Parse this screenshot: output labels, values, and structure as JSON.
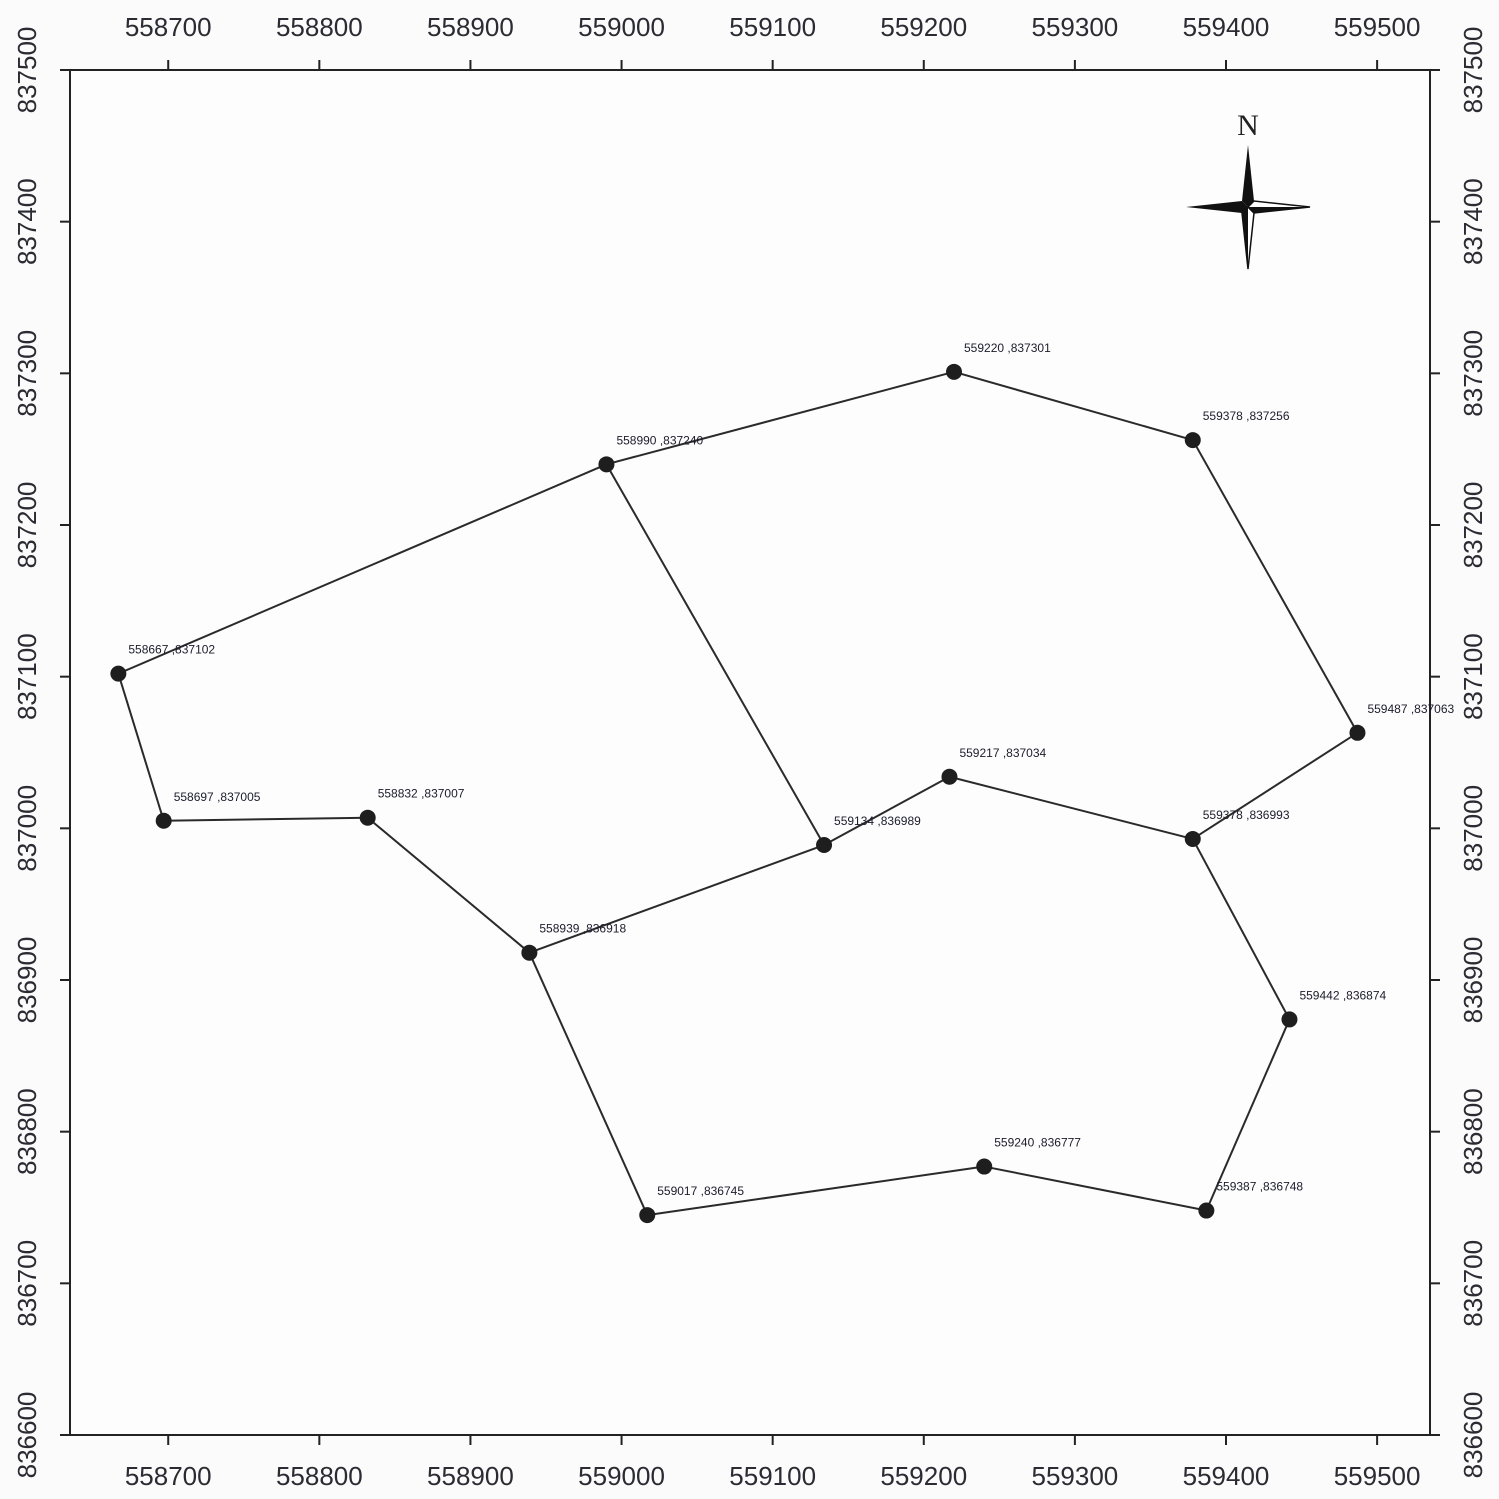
{
  "chart_data": {
    "type": "scatter",
    "x_ticks": [
      558700,
      558800,
      558900,
      559000,
      559100,
      559200,
      559300,
      559400,
      559500
    ],
    "y_ticks": [
      836600,
      836700,
      836800,
      836900,
      837000,
      837100,
      837200,
      837300,
      837400,
      837500
    ],
    "north_label": "N",
    "points": [
      {
        "id": "p1",
        "x": 558667,
        "y": 837102,
        "label": "558667 ,837102"
      },
      {
        "id": "p2",
        "x": 558697,
        "y": 837005,
        "label": "558697 ,837005"
      },
      {
        "id": "p3",
        "x": 558832,
        "y": 837007,
        "label": "558832 ,837007"
      },
      {
        "id": "p4",
        "x": 558939,
        "y": 836918,
        "label": "558939 ,836918"
      },
      {
        "id": "p5",
        "x": 558990,
        "y": 837240,
        "label": "558990 ,837240"
      },
      {
        "id": "p6",
        "x": 559134,
        "y": 836989,
        "label": "559134 ,836989"
      },
      {
        "id": "p7",
        "x": 559217,
        "y": 837034,
        "label": "559217 ,837034"
      },
      {
        "id": "p8",
        "x": 559220,
        "y": 837301,
        "label": "559220 ,837301"
      },
      {
        "id": "p9",
        "x": 559378,
        "y": 837256,
        "label": "559378 ,837256"
      },
      {
        "id": "p10",
        "x": 559378,
        "y": 836993,
        "label": "559378 ,836993"
      },
      {
        "id": "p11",
        "x": 559487,
        "y": 837063,
        "label": "559487 ,837063"
      },
      {
        "id": "p12",
        "x": 559442,
        "y": 836874,
        "label": "559442 ,836874"
      },
      {
        "id": "p13",
        "x": 559017,
        "y": 836745,
        "label": "559017 ,836745"
      },
      {
        "id": "p14",
        "x": 559240,
        "y": 836777,
        "label": "559240 ,836777"
      },
      {
        "id": "p15",
        "x": 559387,
        "y": 836748,
        "label": "559387 ,836748"
      }
    ],
    "lines": [
      [
        "p1",
        "p2"
      ],
      [
        "p2",
        "p3"
      ],
      [
        "p3",
        "p4"
      ],
      [
        "p4",
        "p6"
      ],
      [
        "p6",
        "p7"
      ],
      [
        "p7",
        "p10"
      ],
      [
        "p10",
        "p11"
      ],
      [
        "p1",
        "p5"
      ],
      [
        "p5",
        "p8"
      ],
      [
        "p8",
        "p9"
      ],
      [
        "p9",
        "p11"
      ],
      [
        "p5",
        "p6"
      ],
      [
        "p10",
        "p12"
      ],
      [
        "p12",
        "p15"
      ],
      [
        "p15",
        "p14"
      ],
      [
        "p14",
        "p13"
      ],
      [
        "p13",
        "p4"
      ]
    ]
  }
}
